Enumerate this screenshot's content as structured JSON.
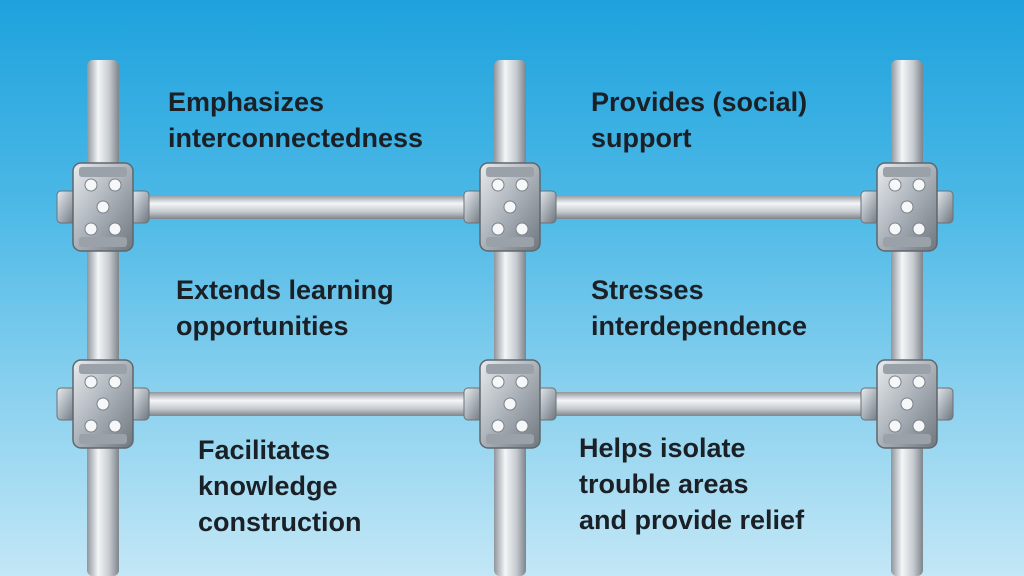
{
  "colors": {
    "sky_top": "#1ea2dd",
    "sky_bottom": "#c3e7f6",
    "pipe": "#c8ccd0",
    "text": "#1a2026"
  },
  "scaffold": {
    "icon": "scaffolding-pipes-and-couplers"
  },
  "cells": [
    {
      "lines": [
        "Emphasizes",
        "interconnectedness"
      ]
    },
    {
      "lines": [
        "Provides (social)",
        "support"
      ]
    },
    {
      "lines": [
        "Extends learning",
        "opportunities"
      ]
    },
    {
      "lines": [
        "Stresses",
        "interdependence"
      ]
    },
    {
      "lines": [
        "Facilitates",
        "knowledge",
        "construction"
      ]
    },
    {
      "lines": [
        "Helps isolate",
        "trouble areas",
        "and provide relief"
      ]
    }
  ]
}
